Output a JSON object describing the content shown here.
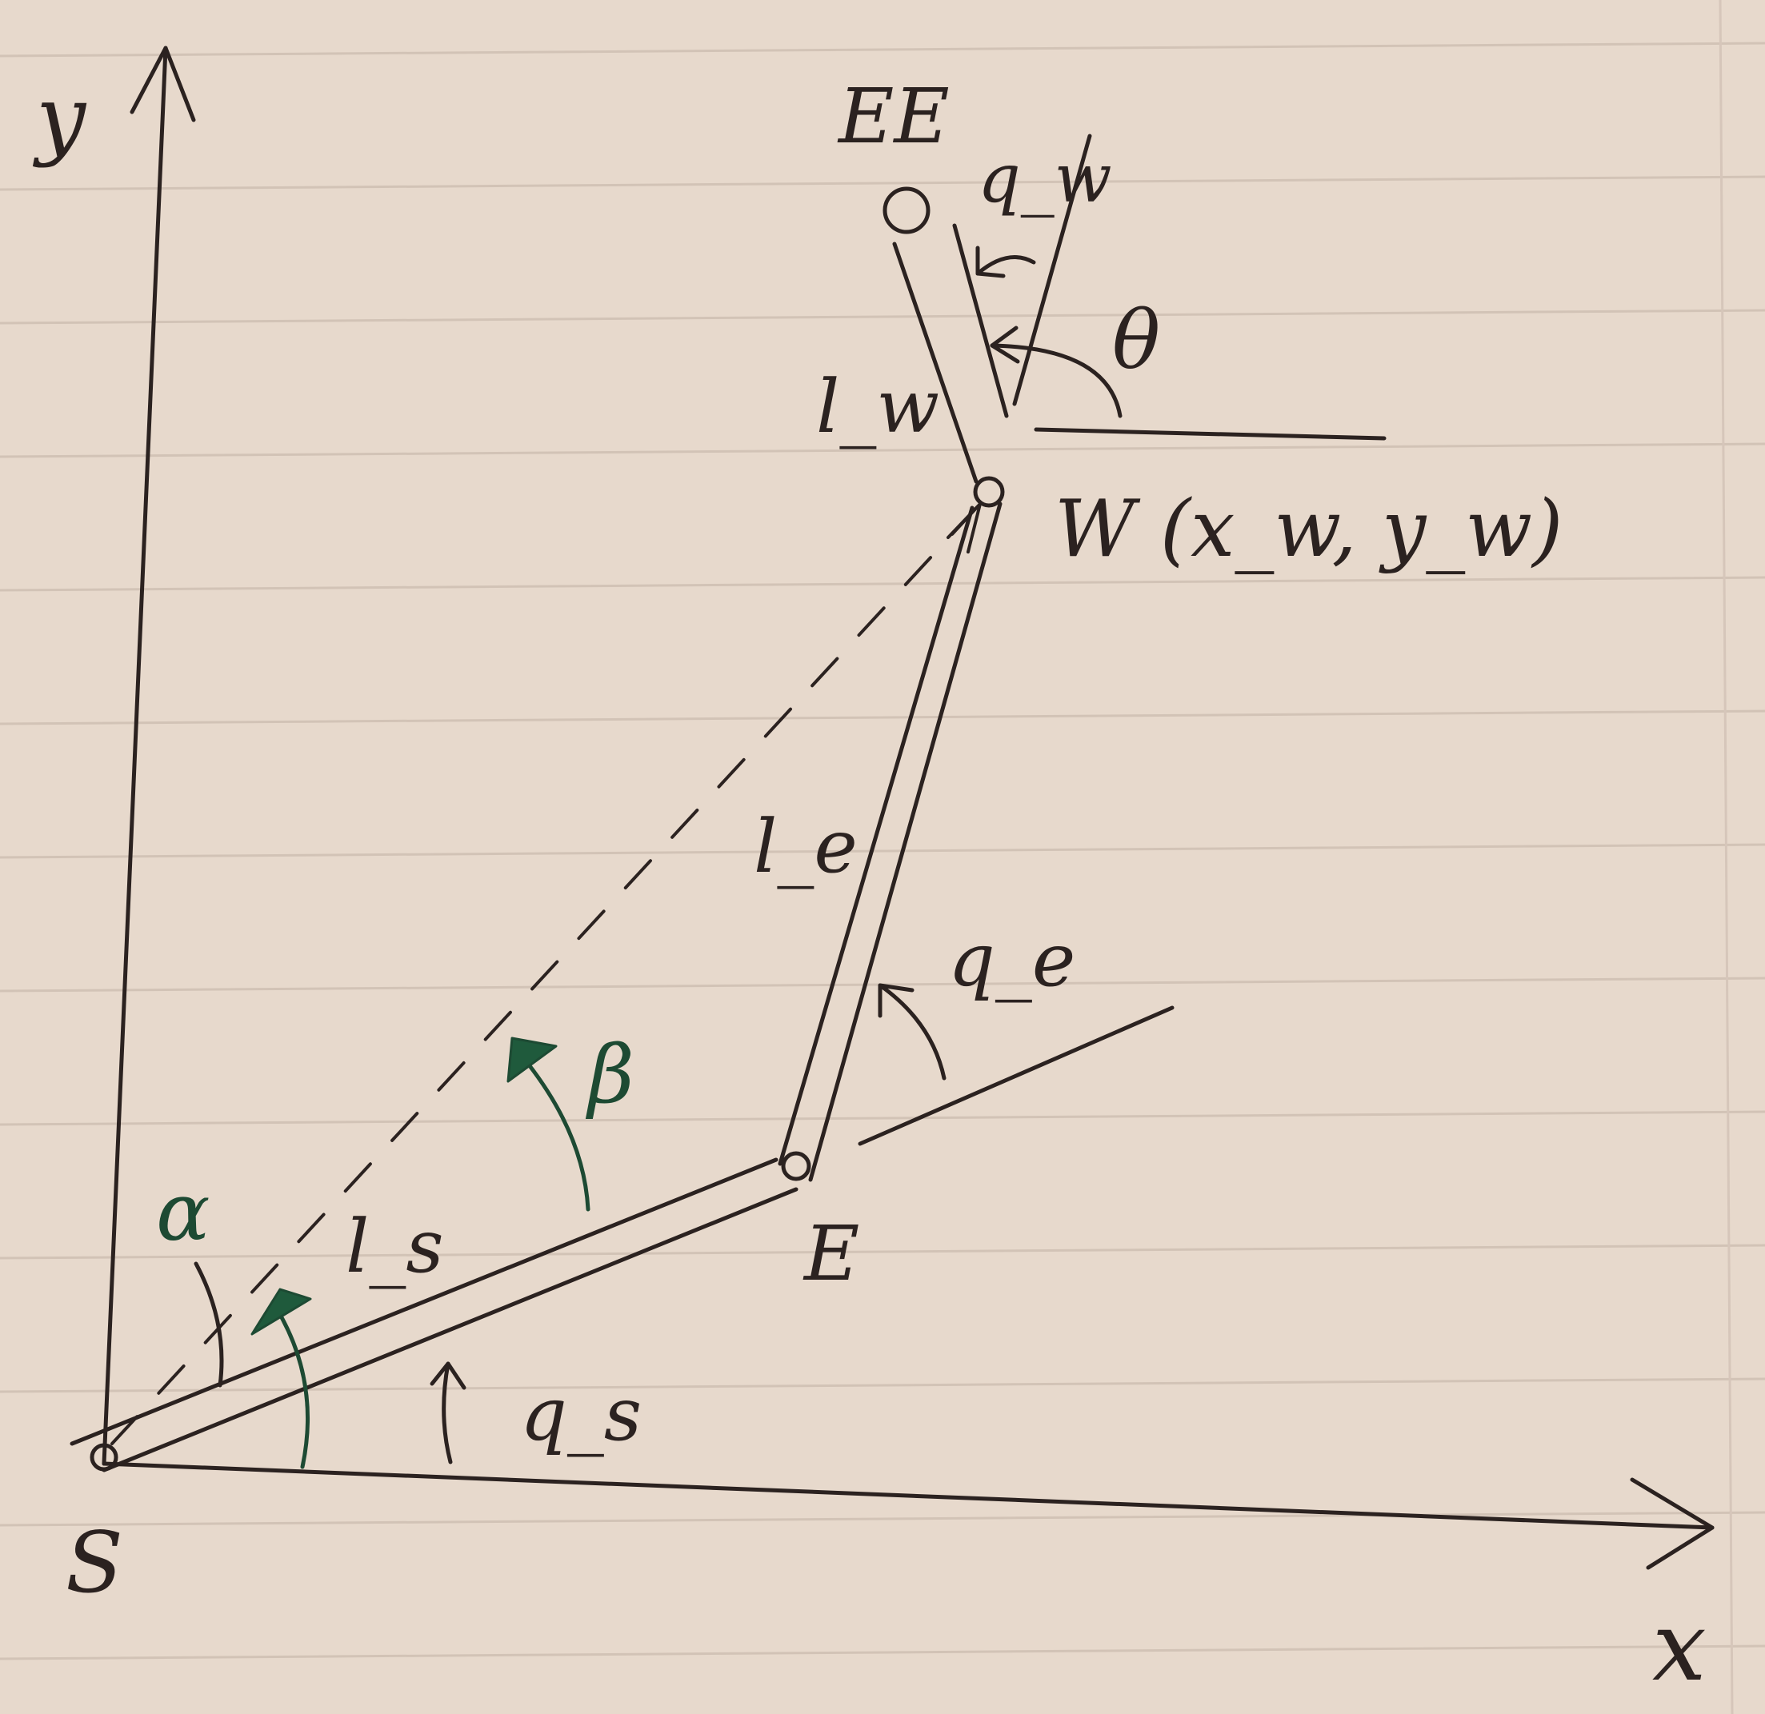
{
  "labels": {
    "y_axis": "y",
    "x_axis": "x",
    "shoulder": "S",
    "elbow": "E",
    "wrist": "W (x_w, y_w)",
    "end_effector": "EE",
    "link_shoulder": "l_s",
    "link_elbow": "l_e",
    "link_wrist": "l_w",
    "angle_shoulder": "q_s",
    "angle_elbow": "q_e",
    "angle_wrist": "q_w",
    "angle_theta": "θ",
    "angle_alpha": "α",
    "angle_beta": "β"
  },
  "colors": {
    "paper": "#e7d9cc",
    "ink": "#2b2220",
    "green_ink": "#1d4a33",
    "ruled_line": "#d2c3b6"
  }
}
